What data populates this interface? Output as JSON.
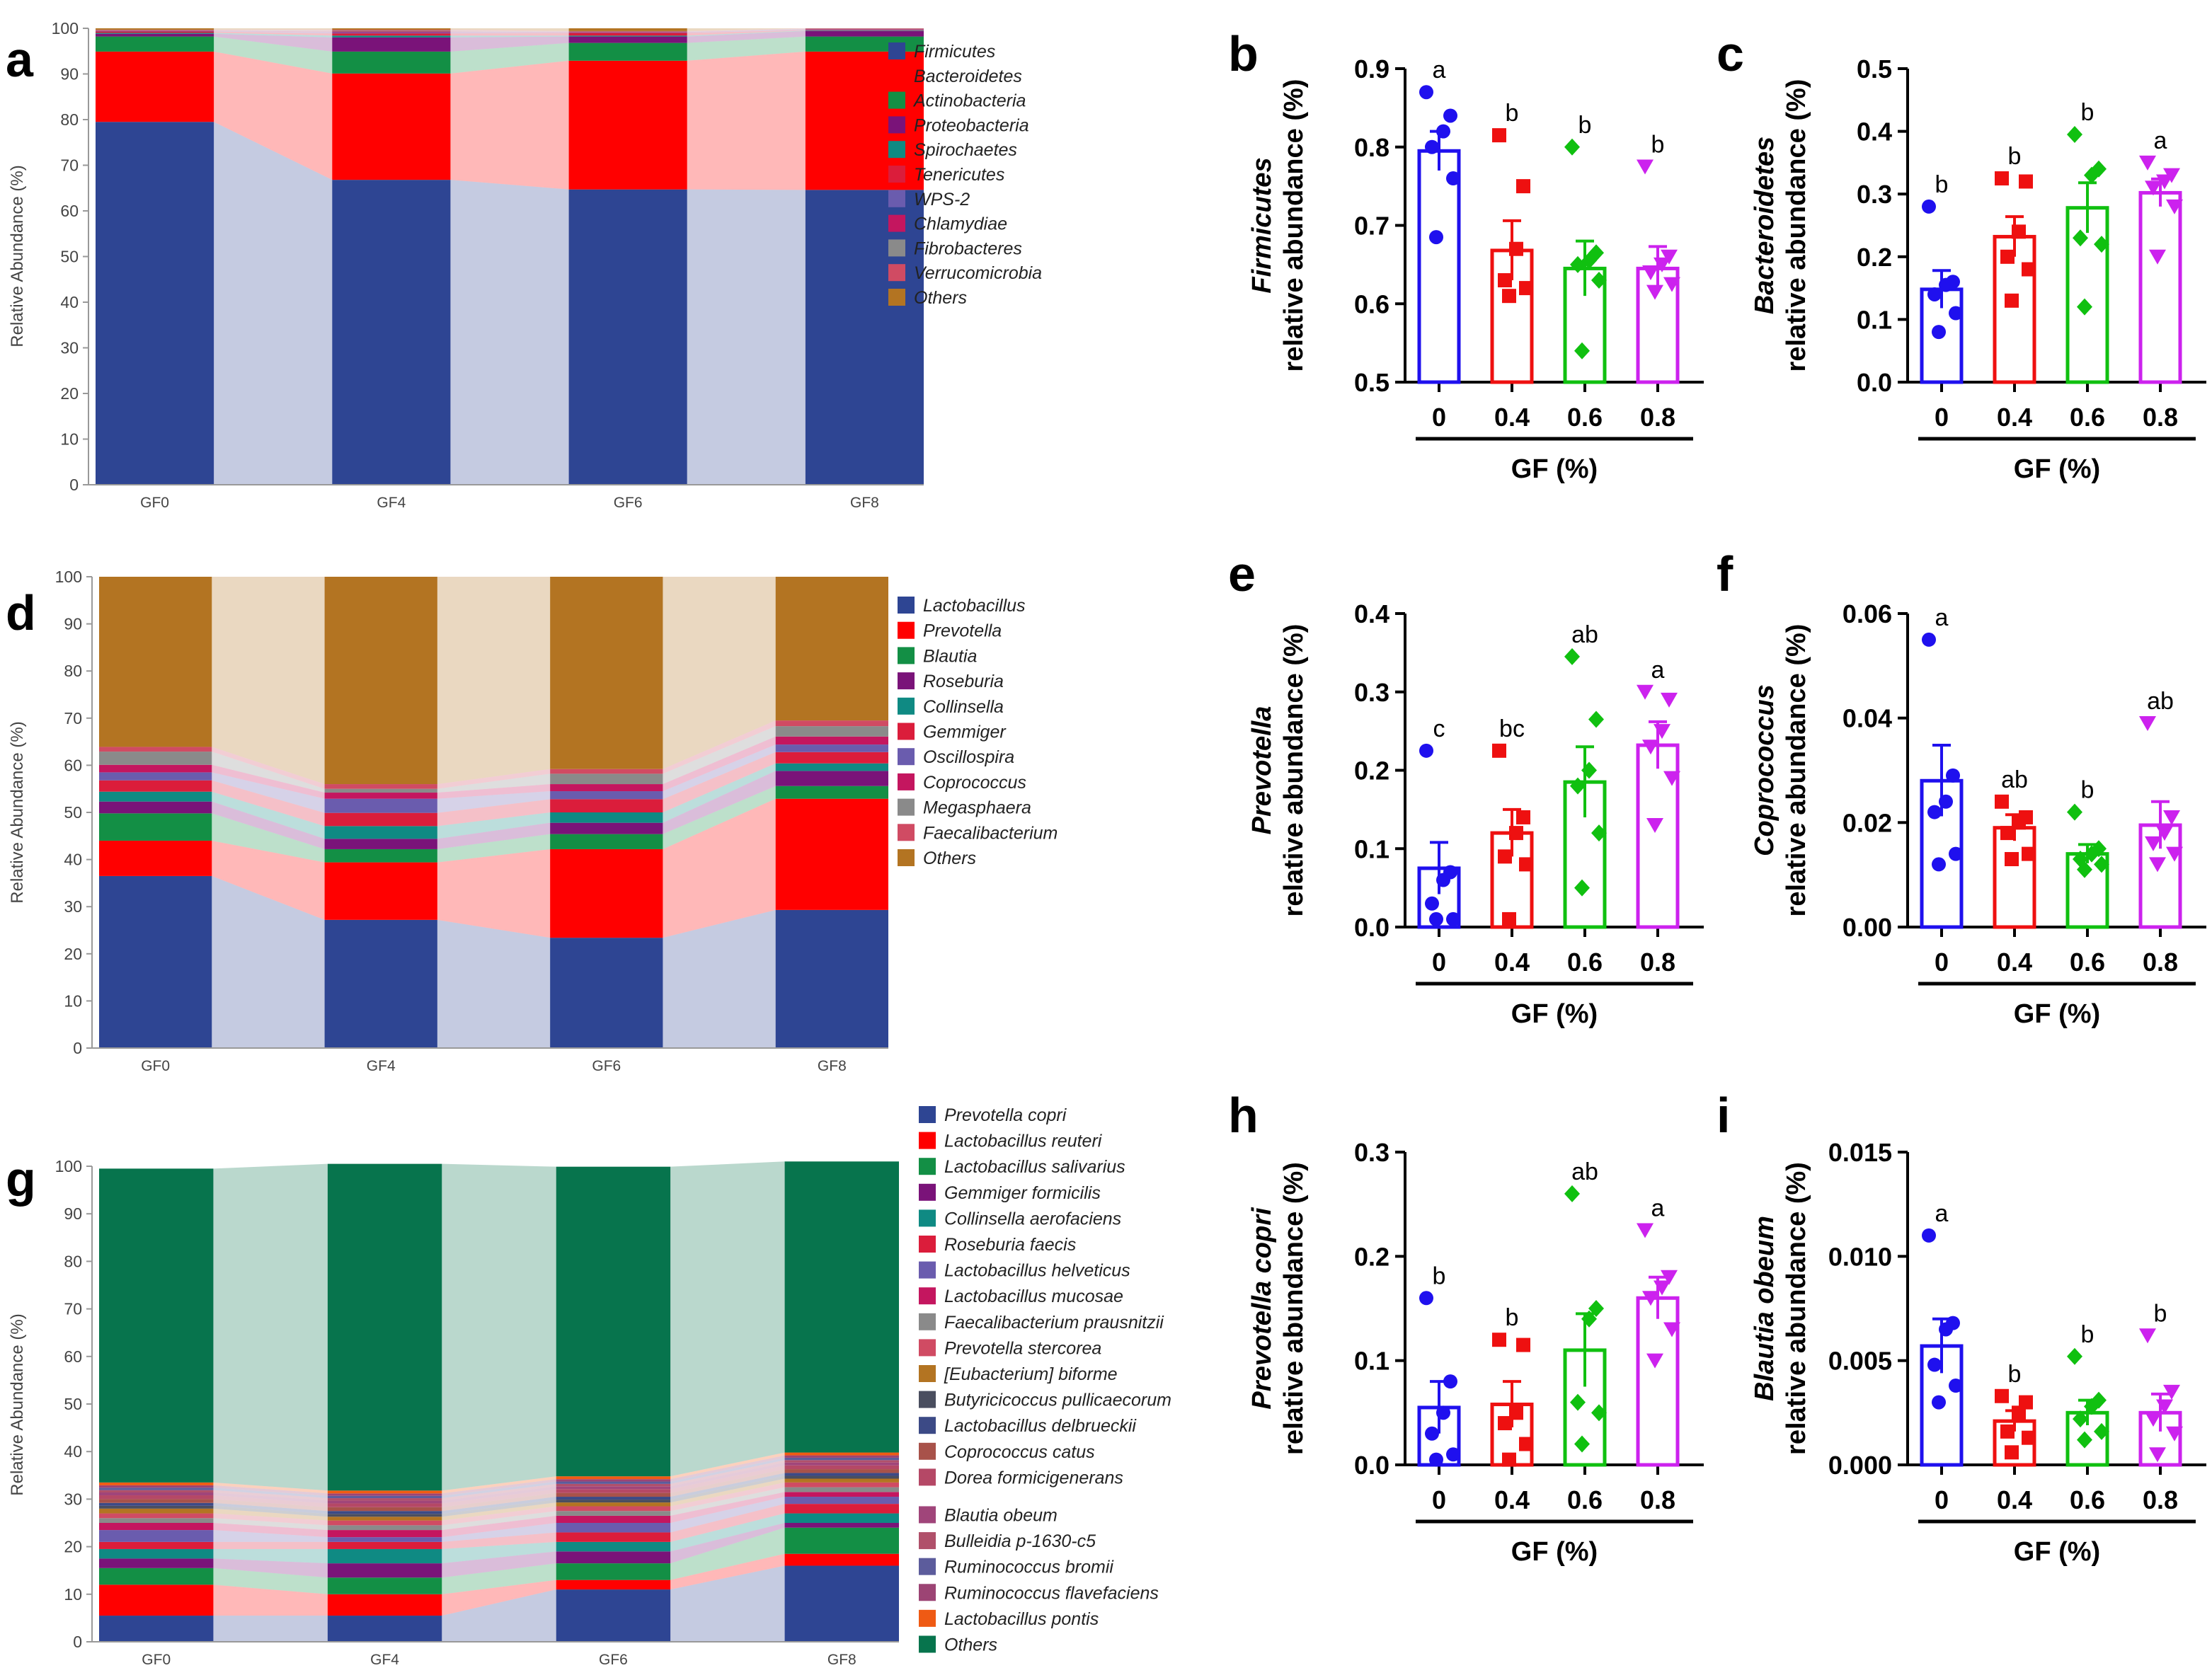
{
  "colors": {
    "group": [
      "#1f10ee",
      "#ee1010",
      "#10c010",
      "#cc22ee"
    ]
  },
  "chart_data": [
    {
      "id": "a",
      "panel_letter": "a",
      "type": "stacked_bar",
      "ylabel": "Relative Abundance (%)",
      "categories": [
        "GF0",
        "GF4",
        "GF6",
        "GF8"
      ],
      "yticks": [
        "0",
        "10",
        "20",
        "30",
        "40",
        "50",
        "60",
        "70",
        "80",
        "90",
        "100"
      ],
      "ylim": [
        0,
        100
      ],
      "series": [
        {
          "name": "Firmicutes",
          "color": "#2e4593",
          "values": [
            79.5,
            66.8,
            64.7,
            64.6
          ]
        },
        {
          "name": "Bacteroidetes",
          "color": "#ff0000",
          "values": [
            15.4,
            23.3,
            28.2,
            30.3
          ]
        },
        {
          "name": "Actinobacteria",
          "color": "#138f45",
          "values": [
            3.3,
            4.8,
            3.9,
            3.3
          ]
        },
        {
          "name": "Proteobacteria",
          "color": "#7a1379",
          "values": [
            0.6,
            3.1,
            1.4,
            1.2
          ]
        },
        {
          "name": "Spirochaetes",
          "color": "#0f8a83",
          "values": [
            0.2,
            0.4,
            0.2,
            0.1
          ]
        },
        {
          "name": "Tenericutes",
          "color": "#db1d3b",
          "values": [
            0.3,
            0.5,
            0.6,
            0.1
          ]
        },
        {
          "name": "WPS-2",
          "color": "#6a5cae",
          "values": [
            0.1,
            0.2,
            0.1,
            0.1
          ]
        },
        {
          "name": "Chlamydiae",
          "color": "#c4165f",
          "values": [
            0.1,
            0.2,
            0.1,
            0.1
          ]
        },
        {
          "name": "Fibrobacteres",
          "color": "#8a8a8a",
          "values": [
            0.1,
            0.2,
            0.1,
            0.1
          ]
        },
        {
          "name": "Verrucomicrobia",
          "color": "#d04b63",
          "values": [
            0.1,
            0.2,
            0.1,
            0.1
          ]
        },
        {
          "name": "Others",
          "color": "#b37422",
          "values": [
            0.3,
            0.3,
            0.6,
            0.0
          ]
        }
      ]
    },
    {
      "id": "d",
      "panel_letter": "d",
      "type": "stacked_bar",
      "ylabel": "Relative Abundance (%)",
      "categories": [
        "GF0",
        "GF4",
        "GF6",
        "GF8"
      ],
      "yticks": [
        "0",
        "10",
        "20",
        "30",
        "40",
        "50",
        "60",
        "70",
        "80",
        "90",
        "100"
      ],
      "ylim": [
        0,
        100
      ],
      "series": [
        {
          "name": "Lactobacillus",
          "color": "#2e4593",
          "values": [
            36.5,
            27.2,
            23.4,
            29.3
          ]
        },
        {
          "name": "Prevotella",
          "color": "#ff0000",
          "values": [
            7.5,
            12.2,
            18.8,
            23.6
          ]
        },
        {
          "name": "Blautia",
          "color": "#138f45",
          "values": [
            5.8,
            2.8,
            3.2,
            2.7
          ]
        },
        {
          "name": "Roseburia",
          "color": "#7a1379",
          "values": [
            2.5,
            2.2,
            2.4,
            3.2
          ]
        },
        {
          "name": "Collinsella",
          "color": "#0f8a83",
          "values": [
            2.1,
            2.7,
            2.2,
            1.6
          ]
        },
        {
          "name": "Gemmiger",
          "color": "#db1d3b",
          "values": [
            2.4,
            2.8,
            2.8,
            2.4
          ]
        },
        {
          "name": "Oscillospira",
          "color": "#6a5cae",
          "values": [
            1.7,
            3.0,
            1.7,
            1.6
          ]
        },
        {
          "name": "Coprococcus",
          "color": "#c4165f",
          "values": [
            1.6,
            1.3,
            1.5,
            1.7
          ]
        },
        {
          "name": "Megasphaera",
          "color": "#8a8a8a",
          "values": [
            2.8,
            0.8,
            2.2,
            2.2
          ]
        },
        {
          "name": "Faecalibacterium",
          "color": "#d04b63",
          "values": [
            1.0,
            1.0,
            1.0,
            1.2
          ]
        },
        {
          "name": "Others",
          "color": "#b37422",
          "values": [
            36.1,
            44.0,
            40.8,
            30.5
          ]
        }
      ]
    },
    {
      "id": "g",
      "panel_letter": "g",
      "type": "stacked_bar",
      "ylabel": "Relative Abundance (%)",
      "categories": [
        "GF0",
        "GF4",
        "GF6",
        "GF8"
      ],
      "yticks": [
        "0",
        "10",
        "20",
        "30",
        "40",
        "50",
        "60",
        "70",
        "80",
        "90",
        "100"
      ],
      "ylim": [
        0,
        100
      ],
      "series": [
        {
          "name": "Prevotella copri",
          "color": "#2e4593",
          "values": [
            5.5,
            5.5,
            11.0,
            16.0
          ]
        },
        {
          "name": "Lactobacillus reuteri",
          "color": "#ff0000",
          "values": [
            6.5,
            4.5,
            2.0,
            2.5
          ]
        },
        {
          "name": "Lactobacillus salivarius",
          "color": "#138f45",
          "values": [
            3.5,
            3.5,
            3.5,
            5.5
          ]
        },
        {
          "name": "Gemmiger formicilis",
          "color": "#7a1379",
          "values": [
            2.0,
            3.0,
            2.5,
            1.0
          ]
        },
        {
          "name": "Collinsella aerofaciens",
          "color": "#0f8a83",
          "values": [
            2.0,
            3.0,
            2.0,
            2.0
          ]
        },
        {
          "name": "Roseburia faecis",
          "color": "#db1d3b",
          "values": [
            1.5,
            1.5,
            2.0,
            2.0
          ]
        },
        {
          "name": "Lactobacillus helveticus",
          "color": "#6a5cae",
          "values": [
            2.5,
            1.0,
            2.0,
            1.5
          ]
        },
        {
          "name": "Lactobacillus mucosae",
          "color": "#c4165f",
          "values": [
            1.5,
            1.5,
            1.5,
            1.0
          ]
        },
        {
          "name": "Faecalibacterium prausnitzii",
          "color": "#8a8a8a",
          "values": [
            1.0,
            1.0,
            1.0,
            1.0
          ]
        },
        {
          "name": "Prevotella stercorea",
          "color": "#d04b63",
          "values": [
            1.0,
            1.0,
            1.0,
            1.0
          ]
        },
        {
          "name": "[Eubacterium] biforme",
          "color": "#b37422",
          "values": [
            1.0,
            0.8,
            0.8,
            0.8
          ]
        },
        {
          "name": "Butyricicoccus pullicaecorum",
          "color": "#4a4e5f",
          "values": [
            0.6,
            0.6,
            0.6,
            0.6
          ]
        },
        {
          "name": "Lactobacillus delbrueckii",
          "color": "#3c4a86",
          "values": [
            0.6,
            0.6,
            0.6,
            0.6
          ]
        },
        {
          "name": "Coprococcus catus",
          "color": "#a8524a",
          "values": [
            0.8,
            0.8,
            0.8,
            0.8
          ]
        },
        {
          "name": "Dorea formicigenerans",
          "color": "#b54866",
          "values": [
            0.8,
            0.8,
            0.8,
            0.8
          ]
        },
        {
          "name": "Blautia obeum",
          "color": "#a0457a",
          "values": [
            0.6,
            0.6,
            0.6,
            0.6
          ]
        },
        {
          "name": "Bulleidia p-1630-c5",
          "color": "#b0506a",
          "values": [
            0.5,
            0.5,
            0.5,
            0.5
          ]
        },
        {
          "name": "Ruminococcus bromii",
          "color": "#5c5c9c",
          "values": [
            0.5,
            0.5,
            0.5,
            0.5
          ]
        },
        {
          "name": "Ruminococcus flavefaciens",
          "color": "#9c4474",
          "values": [
            0.5,
            0.5,
            0.5,
            0.5
          ]
        },
        {
          "name": "Lactobacillus pontis",
          "color": "#ef5a14",
          "values": [
            0.6,
            0.6,
            0.6,
            0.6
          ]
        },
        {
          "name": "Others",
          "color": "#07744d",
          "values": [
            66.0,
            68.7,
            65.1,
            61.2
          ]
        }
      ]
    },
    {
      "id": "b",
      "panel_letter": "b",
      "type": "bar",
      "ylabel_italic": "Firmicutes",
      "ylabel": "relative abundance (%)",
      "xlabel": "GF (%)",
      "categories": [
        "0",
        "0.4",
        "0.6",
        "0.8"
      ],
      "ylim": [
        0.5,
        0.9
      ],
      "yticks": [
        "0.5",
        "0.6",
        "0.7",
        "0.8",
        "0.9"
      ],
      "values": [
        0.795,
        0.668,
        0.645,
        0.645
      ],
      "sem": [
        0.025,
        0.038,
        0.035,
        0.028
      ],
      "letters": [
        "a",
        "b",
        "b",
        "b"
      ],
      "points": [
        [
          0.87,
          0.84,
          0.82,
          0.8,
          0.76,
          0.685
        ],
        [
          0.815,
          0.75,
          0.67,
          0.63,
          0.62,
          0.61
        ],
        [
          0.8,
          0.665,
          0.655,
          0.65,
          0.63,
          0.54
        ],
        [
          0.775,
          0.66,
          0.65,
          0.64,
          0.625,
          0.615
        ]
      ]
    },
    {
      "id": "c",
      "panel_letter": "c",
      "type": "bar",
      "ylabel_italic": "Bacteroidetes",
      "ylabel": "relative abundance (%)",
      "xlabel": "GF (%)",
      "categories": [
        "0",
        "0.4",
        "0.6",
        "0.8"
      ],
      "ylim": [
        0.0,
        0.5
      ],
      "yticks": [
        "0.0",
        "0.1",
        "0.2",
        "0.3",
        "0.4",
        "0.5"
      ],
      "values": [
        0.148,
        0.232,
        0.278,
        0.302
      ],
      "sem": [
        0.03,
        0.032,
        0.04,
        0.022
      ],
      "letters": [
        "b",
        "b",
        "b",
        "a"
      ],
      "points": [
        [
          0.28,
          0.16,
          0.155,
          0.14,
          0.11,
          0.08
        ],
        [
          0.325,
          0.32,
          0.24,
          0.2,
          0.18,
          0.13
        ],
        [
          0.395,
          0.34,
          0.33,
          0.23,
          0.22,
          0.12
        ],
        [
          0.35,
          0.33,
          0.32,
          0.31,
          0.28,
          0.2
        ]
      ]
    },
    {
      "id": "e",
      "panel_letter": "e",
      "type": "bar",
      "ylabel_italic": "Prevotella",
      "ylabel": "relative abundance (%)",
      "xlabel": "GF (%)",
      "categories": [
        "0",
        "0.4",
        "0.6",
        "0.8"
      ],
      "ylim": [
        0.0,
        0.4
      ],
      "yticks": [
        "0.0",
        "0.1",
        "0.2",
        "0.3",
        "0.4"
      ],
      "values": [
        0.075,
        0.12,
        0.185,
        0.232
      ],
      "sem": [
        0.033,
        0.03,
        0.045,
        0.03
      ],
      "letters": [
        "c",
        "bc",
        "ab",
        "a"
      ],
      "points": [
        [
          0.225,
          0.07,
          0.06,
          0.03,
          0.01,
          0.01
        ],
        [
          0.225,
          0.14,
          0.12,
          0.09,
          0.08,
          0.01
        ],
        [
          0.345,
          0.265,
          0.2,
          0.18,
          0.12,
          0.05
        ],
        [
          0.3,
          0.29,
          0.25,
          0.23,
          0.19,
          0.13
        ]
      ]
    },
    {
      "id": "f",
      "panel_letter": "f",
      "type": "bar",
      "ylabel_italic": "Coprococcus",
      "ylabel": "relative abundance (%)",
      "xlabel": "GF (%)",
      "categories": [
        "0",
        "0.4",
        "0.6",
        "0.8"
      ],
      "ylim": [
        0.0,
        0.06
      ],
      "yticks": [
        "0.00",
        "0.02",
        "0.04",
        "0.06"
      ],
      "values": [
        0.028,
        0.019,
        0.014,
        0.0195
      ],
      "sem": [
        0.0068,
        0.0025,
        0.0018,
        0.0045
      ],
      "letters": [
        "a",
        "ab",
        "b",
        "ab"
      ],
      "points": [
        [
          0.055,
          0.029,
          0.024,
          0.022,
          0.014,
          0.012
        ],
        [
          0.024,
          0.021,
          0.02,
          0.018,
          0.014,
          0.013
        ],
        [
          0.022,
          0.015,
          0.014,
          0.013,
          0.012,
          0.011
        ],
        [
          0.039,
          0.021,
          0.018,
          0.016,
          0.014,
          0.012
        ]
      ]
    },
    {
      "id": "h",
      "panel_letter": "h",
      "type": "bar",
      "ylabel_italic": "Prevotella copri",
      "ylabel": "relative abundance (%)",
      "xlabel": "GF (%)",
      "categories": [
        "0",
        "0.4",
        "0.6",
        "0.8"
      ],
      "ylim": [
        0.0,
        0.3
      ],
      "yticks": [
        "0.0",
        "0.1",
        "0.2",
        "0.3"
      ],
      "values": [
        0.055,
        0.058,
        0.11,
        0.16
      ],
      "sem": [
        0.025,
        0.022,
        0.035,
        0.02
      ],
      "letters": [
        "b",
        "b",
        "ab",
        "a"
      ],
      "points": [
        [
          0.16,
          0.08,
          0.05,
          0.03,
          0.01,
          0.005
        ],
        [
          0.12,
          0.115,
          0.05,
          0.04,
          0.02,
          0.005
        ],
        [
          0.26,
          0.15,
          0.14,
          0.06,
          0.05,
          0.02
        ],
        [
          0.225,
          0.18,
          0.17,
          0.16,
          0.13,
          0.1
        ]
      ]
    },
    {
      "id": "i",
      "panel_letter": "i",
      "type": "bar",
      "ylabel_italic": "Blautia obeum",
      "ylabel": "relative abundance (%)",
      "xlabel": "GF (%)",
      "categories": [
        "0",
        "0.4",
        "0.6",
        "0.8"
      ],
      "ylim": [
        0.0,
        0.015
      ],
      "yticks": [
        "0.000",
        "0.005",
        "0.010",
        "0.015"
      ],
      "values": [
        0.0057,
        0.0021,
        0.0025,
        0.0025
      ],
      "sem": [
        0.0013,
        0.0005,
        0.0006,
        0.0009
      ],
      "letters": [
        "a",
        "b",
        "b",
        "b"
      ],
      "points": [
        [
          0.011,
          0.0068,
          0.0065,
          0.0048,
          0.0038,
          0.003
        ],
        [
          0.0033,
          0.003,
          0.0025,
          0.0016,
          0.0013,
          0.0006
        ],
        [
          0.0052,
          0.0031,
          0.0028,
          0.0022,
          0.0016,
          0.0012
        ],
        [
          0.0062,
          0.0035,
          0.0028,
          0.0022,
          0.0015,
          0.0005
        ]
      ]
    }
  ]
}
